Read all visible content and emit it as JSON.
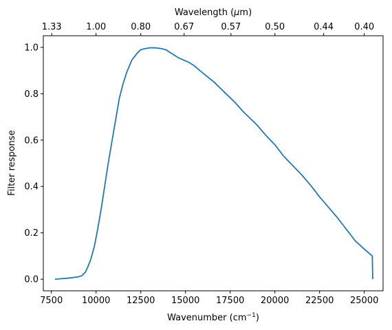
{
  "chart_data": {
    "type": "line",
    "xlabel": "Wavenumber (cm",
    "xlabel_sup": "−1",
    "xlabel_end": ")",
    "ylabel": "Filter response",
    "top_xlabel": "Wavelength (",
    "top_xlabel_mu": "μ",
    "top_xlabel_end": "m)",
    "xlim": [
      7050,
      26050
    ],
    "ylim": [
      -0.05,
      1.05
    ],
    "x_ticks": [
      7500,
      10000,
      12500,
      15000,
      17500,
      20000,
      22500,
      25000
    ],
    "x_tick_labels": [
      "7500",
      "10000",
      "12500",
      "15000",
      "17500",
      "20000",
      "22500",
      "25000"
    ],
    "y_ticks": [
      0.0,
      0.2,
      0.4,
      0.6,
      0.8,
      1.0
    ],
    "y_tick_labels": [
      "0.0",
      "0.2",
      "0.4",
      "0.6",
      "0.8",
      "1.0"
    ],
    "top_ticks": [
      7519,
      10000,
      12500,
      14925,
      17544,
      20000,
      22727,
      25000
    ],
    "top_tick_labels": [
      "1.33",
      "1.00",
      "0.80",
      "0.67",
      "0.57",
      "0.50",
      "0.44",
      "0.40"
    ],
    "grid": false,
    "color": "#1f77b4",
    "series": [
      {
        "x": [
          7700,
          8000,
          8500,
          9000,
          9200,
          9400,
          9550,
          9700,
          9900,
          10100,
          10300,
          10500,
          10700,
          10900,
          11100,
          11300,
          11500,
          11700,
          12000,
          12300,
          12500,
          12800,
          13000,
          13300,
          13600,
          13900,
          14100,
          14300,
          14600,
          14900,
          15200,
          15500,
          15800,
          16200,
          16600,
          17000,
          17400,
          17800,
          18200,
          18600,
          19000,
          19500,
          20000,
          20500,
          21000,
          21500,
          22000,
          22500,
          23000,
          23500,
          24000,
          24500,
          25000,
          25450,
          25460,
          25470
        ],
        "y": [
          0.0,
          0.002,
          0.005,
          0.01,
          0.015,
          0.03,
          0.055,
          0.085,
          0.14,
          0.22,
          0.31,
          0.41,
          0.51,
          0.6,
          0.69,
          0.78,
          0.84,
          0.89,
          0.945,
          0.975,
          0.99,
          0.995,
          0.998,
          0.998,
          0.995,
          0.99,
          0.98,
          0.97,
          0.955,
          0.945,
          0.935,
          0.92,
          0.9,
          0.875,
          0.85,
          0.82,
          0.79,
          0.76,
          0.725,
          0.695,
          0.665,
          0.62,
          0.58,
          0.53,
          0.49,
          0.45,
          0.405,
          0.355,
          0.31,
          0.265,
          0.215,
          0.165,
          0.13,
          0.1,
          0.05,
          0.0
        ]
      }
    ]
  }
}
